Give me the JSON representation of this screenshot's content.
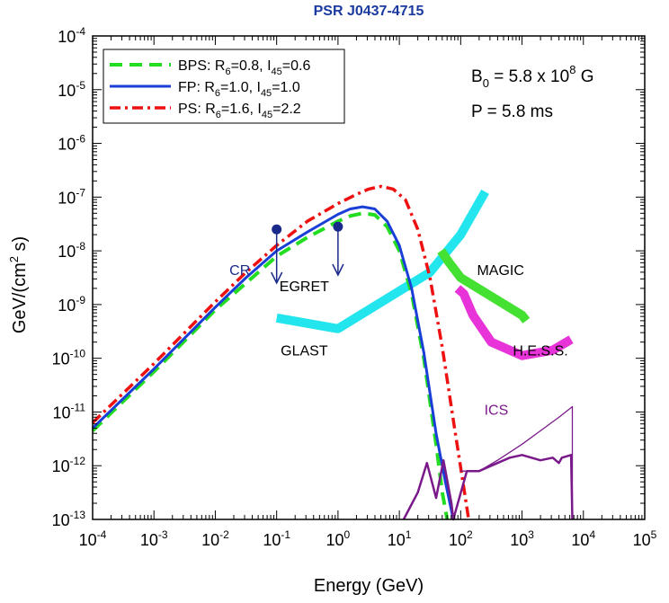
{
  "chart_data": {
    "type": "line",
    "title": "PSR J0437-4715",
    "xlabel": "Energy (GeV)",
    "ylabel": {
      "base": "GeV/(cm",
      "exp": "2",
      "tail": " s)"
    },
    "x_scale": "log",
    "y_scale": "log",
    "xlim_exp": [
      -4,
      5
    ],
    "ylim_exp": [
      -13,
      -4
    ],
    "x_ticks": [
      {
        "base": "10",
        "exp": "-4"
      },
      {
        "base": "10",
        "exp": "-3"
      },
      {
        "base": "10",
        "exp": "-2"
      },
      {
        "base": "10",
        "exp": "-1"
      },
      {
        "base": "10",
        "exp": "0"
      },
      {
        "base": "10",
        "exp": "1"
      },
      {
        "base": "10",
        "exp": "2"
      },
      {
        "base": "10",
        "exp": "3"
      },
      {
        "base": "10",
        "exp": "4"
      },
      {
        "base": "10",
        "exp": "5"
      }
    ],
    "y_ticks": [
      {
        "base": "10",
        "exp": "-13"
      },
      {
        "base": "10",
        "exp": "-12"
      },
      {
        "base": "10",
        "exp": "-11"
      },
      {
        "base": "10",
        "exp": "-10"
      },
      {
        "base": "10",
        "exp": "-9"
      },
      {
        "base": "10",
        "exp": "-8"
      },
      {
        "base": "10",
        "exp": "-7"
      },
      {
        "base": "10",
        "exp": "-6"
      },
      {
        "base": "10",
        "exp": "-5"
      },
      {
        "base": "10",
        "exp": "-4"
      }
    ],
    "params": {
      "b0": {
        "pre": "B",
        "sub": "0",
        "mid": " = 5.8  x 10",
        "sup": "8",
        "post": " G"
      },
      "period": "P =  5.8 ms"
    },
    "legend": [
      {
        "name": "BPS",
        "label": {
          "p1": "BPS: R",
          "s1": "6",
          "p2": "=0.8, I",
          "s2": "45",
          "p3": "=0.6"
        }
      },
      {
        "name": "FP",
        "label": {
          "p1": "FP: R",
          "s1": "6",
          "p2": "=1.0, I",
          "s2": "45",
          "p3": "=1.0"
        }
      },
      {
        "name": "PS",
        "label": {
          "p1": "PS: R",
          "s1": "6",
          "p2": "=1.6, I",
          "s2": "45",
          "p3": "=2.2"
        }
      }
    ],
    "series": [
      {
        "name": "BPS",
        "color": "#22dd22",
        "style": "dashed",
        "x": [
          -4,
          -3,
          -2,
          -1.5,
          -1,
          -0.5,
          0,
          0.2,
          0.4,
          0.6,
          0.8,
          1.0,
          1.2,
          1.4,
          1.6,
          1.7,
          1.78
        ],
        "y": [
          -11.35,
          -10.25,
          -9.1,
          -8.6,
          -8.1,
          -7.75,
          -7.45,
          -7.35,
          -7.3,
          -7.33,
          -7.55,
          -8.0,
          -8.8,
          -10.0,
          -11.6,
          -12.5,
          -13.0
        ]
      },
      {
        "name": "FP",
        "color": "#1a3fd6",
        "style": "solid",
        "x": [
          -4,
          -3,
          -2,
          -1.5,
          -1,
          -0.5,
          0,
          0.2,
          0.4,
          0.6,
          0.8,
          1.0,
          1.2,
          1.4,
          1.6,
          1.75,
          1.88
        ],
        "y": [
          -11.3,
          -10.2,
          -9.05,
          -8.5,
          -8.0,
          -7.65,
          -7.32,
          -7.22,
          -7.18,
          -7.22,
          -7.45,
          -7.9,
          -8.7,
          -9.9,
          -11.4,
          -12.3,
          -13.0
        ]
      },
      {
        "name": "PS",
        "color": "#ee1111",
        "style": "dashdot",
        "x": [
          -4,
          -3,
          -2,
          -1.5,
          -1,
          -0.5,
          0,
          0.3,
          0.5,
          0.7,
          0.9,
          1.1,
          1.3,
          1.5,
          1.7,
          1.9,
          2.05,
          2.13
        ],
        "y": [
          -11.2,
          -10.1,
          -8.95,
          -8.4,
          -7.9,
          -7.45,
          -7.12,
          -6.95,
          -6.85,
          -6.8,
          -6.85,
          -7.05,
          -7.6,
          -8.5,
          -9.8,
          -11.3,
          -12.4,
          -13.0
        ]
      },
      {
        "name": "ICS",
        "color": "#7a1a8a",
        "x": [
          1.07,
          1.3,
          1.45,
          1.6,
          1.72,
          1.85,
          1.88,
          2.1,
          2.3,
          2.5,
          2.8,
          3.0,
          3.3,
          3.5,
          3.6,
          3.65,
          3.8,
          3.82
        ],
        "y": [
          -13.0,
          -12.5,
          -11.95,
          -12.6,
          -11.9,
          -12.7,
          -13.0,
          -12.1,
          -12.1,
          -12.0,
          -11.85,
          -11.8,
          -11.9,
          -11.85,
          -11.95,
          -11.85,
          -11.8,
          -13.0
        ]
      },
      {
        "name": "ICS upper",
        "color": "#7a1a8a",
        "x": [
          2.0,
          2.3,
          2.6,
          3.0,
          3.3,
          3.6,
          3.82,
          3.82
        ],
        "y": [
          -12.1,
          -12.1,
          -11.9,
          -11.6,
          -11.35,
          -11.1,
          -10.9,
          -13.0
        ]
      }
    ],
    "upper_limits": [
      {
        "x": -1.0,
        "y": -7.6,
        "y_to": -8.6
      },
      {
        "x": 0.0,
        "y": -7.55,
        "y_to": -8.45
      }
    ],
    "sensitivity_curves": [
      {
        "name": "GLAST",
        "color": "#22e5ee",
        "x": [
          -1.0,
          0.0,
          1.0,
          1.5,
          2.0,
          2.4
        ],
        "y": [
          -9.25,
          -9.45,
          -8.75,
          -8.4,
          -7.7,
          -6.9
        ]
      },
      {
        "name": "MAGIC",
        "color": "#44e032",
        "x": [
          1.68,
          1.8,
          2.0,
          2.5,
          3.0,
          3.07
        ],
        "y": [
          -8.0,
          -8.2,
          -8.5,
          -8.85,
          -9.2,
          -9.3
        ]
      },
      {
        "name": "H.E.S.S.",
        "color": "#e833d8",
        "x": [
          1.95,
          2.05,
          2.2,
          2.5,
          3.0,
          3.5,
          3.8
        ],
        "y": [
          -8.7,
          -8.8,
          -9.2,
          -9.7,
          -9.95,
          -9.85,
          -9.65
        ]
      }
    ],
    "annotations": [
      {
        "text": "CR",
        "x": -1.6,
        "y": -8.45,
        "color": "#1a2a8a"
      },
      {
        "text": "EGRET",
        "x": -0.55,
        "y": -8.75,
        "color": "#000000"
      },
      {
        "text": "MAGIC",
        "x": 2.65,
        "y": -8.45,
        "color": "#000000"
      },
      {
        "text": "GLAST",
        "x": -0.55,
        "y": -9.95,
        "color": "#000000"
      },
      {
        "text": "H.E.S.S.",
        "x": 3.3,
        "y": -9.95,
        "color": "#000000"
      },
      {
        "text": "ICS",
        "x": 2.58,
        "y": -11.05,
        "color": "#7a1a8a"
      }
    ]
  }
}
